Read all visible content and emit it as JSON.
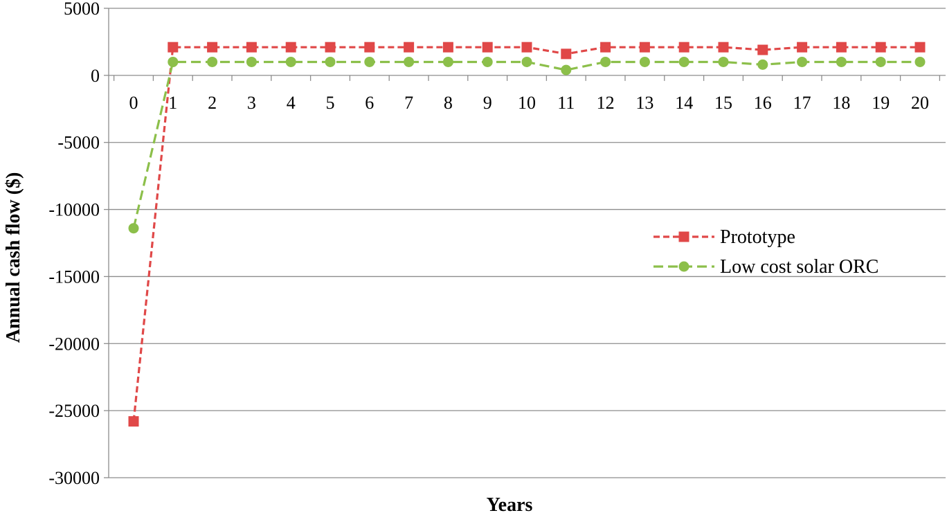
{
  "chart_data": {
    "type": "line",
    "title": "",
    "xlabel": "Years",
    "ylabel": "Annual cash flow ($)",
    "ylim": [
      -30000,
      5000
    ],
    "yticks": [
      5000,
      0,
      -5000,
      -10000,
      -15000,
      -20000,
      -25000,
      -30000
    ],
    "ytick_labels": [
      "5000",
      "0",
      "-5000",
      "-10000",
      "-15000",
      "-20000",
      "-25000",
      "-30000"
    ],
    "categories": [
      "0",
      "1",
      "2",
      "3",
      "4",
      "5",
      "6",
      "7",
      "8",
      "9",
      "10",
      "11",
      "12",
      "13",
      "14",
      "15",
      "16",
      "17",
      "18",
      "19",
      "20"
    ],
    "grid": true,
    "legend_position": "right",
    "series": [
      {
        "name": "Prototype",
        "color": "#e04848",
        "marker": "square",
        "line_style": "dashed",
        "values": [
          -25800,
          2100,
          2100,
          2100,
          2100,
          2100,
          2100,
          2100,
          2100,
          2100,
          2100,
          1600,
          2100,
          2100,
          2100,
          2100,
          1900,
          2100,
          2100,
          2100,
          2100
        ]
      },
      {
        "name": "Low cost solar ORC",
        "color": "#8cbf4a",
        "marker": "circle",
        "line_style": "dashed",
        "values": [
          -11400,
          1000,
          1000,
          1000,
          1000,
          1000,
          1000,
          1000,
          1000,
          1000,
          1000,
          400,
          1000,
          1000,
          1000,
          1000,
          800,
          1000,
          1000,
          1000,
          1000
        ]
      }
    ]
  }
}
